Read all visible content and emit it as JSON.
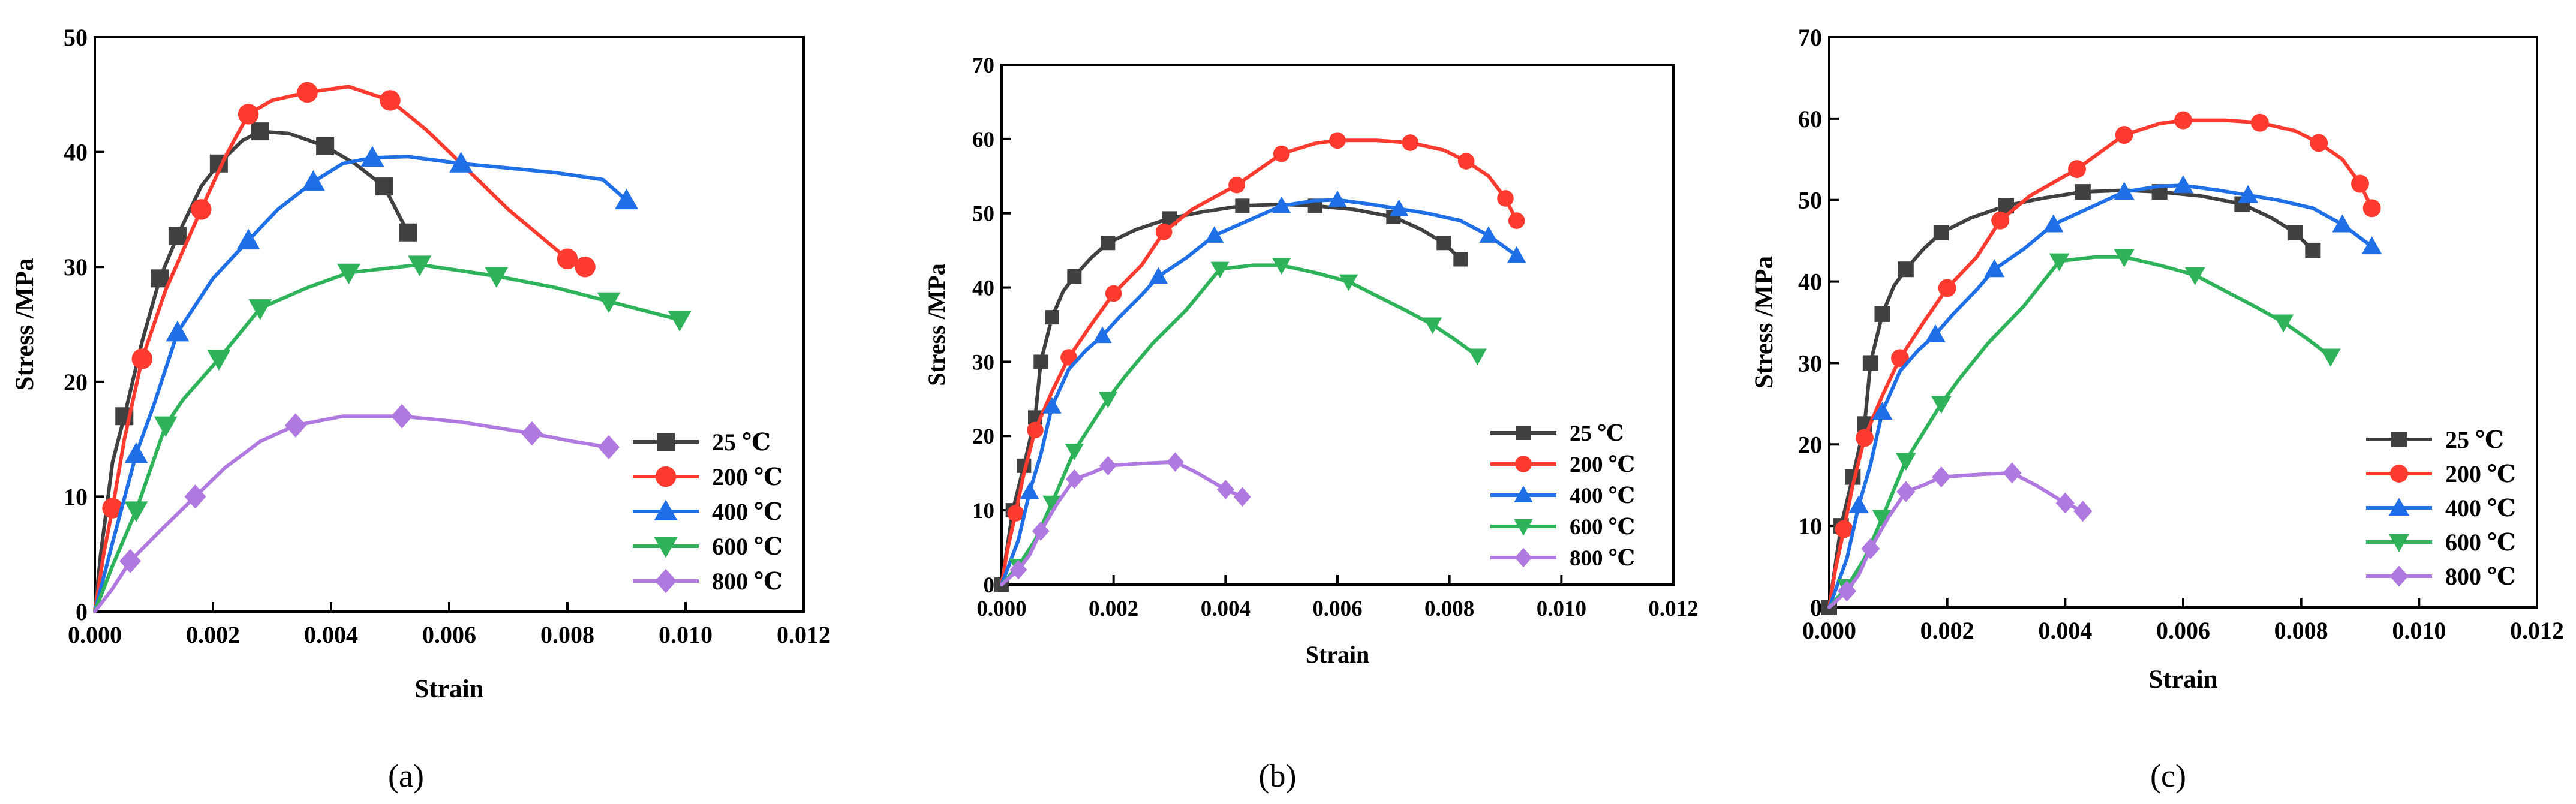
{
  "figure": {
    "panels": [
      {
        "label": "(a)"
      },
      {
        "label": "(b)"
      },
      {
        "label": "(c)"
      }
    ]
  },
  "chart_data": [
    {
      "type": "line",
      "panel_label": "(a)",
      "title": "",
      "xlabel": "Strain",
      "ylabel": "Stress /MPa",
      "xlim": [
        0,
        0.012
      ],
      "ylim": [
        0,
        50
      ],
      "xticks": [
        0.0,
        0.002,
        0.004,
        0.006,
        0.008,
        0.01,
        0.012
      ],
      "xtick_labels": [
        "0.000",
        "0.002",
        "0.004",
        "0.006",
        "0.008",
        "0.010",
        "0.012"
      ],
      "yticks": [
        0,
        10,
        20,
        30,
        40,
        50
      ],
      "ytick_labels": [
        "0",
        "10",
        "20",
        "30",
        "40",
        "50"
      ],
      "grid": false,
      "legend_position": "bottom-right",
      "series": [
        {
          "name": "25 ℃",
          "color": "#404040",
          "marker": "square",
          "x": [
            0,
            0.0001,
            0.0003,
            0.0005,
            0.0008,
            0.0011,
            0.0014,
            0.0018,
            0.0021,
            0.0025,
            0.0028,
            0.0033,
            0.0039,
            0.0044,
            0.0049,
            0.0053
          ],
          "y": [
            0,
            5,
            13,
            17,
            23.5,
            29,
            32.7,
            37,
            39,
            41,
            41.8,
            41.6,
            40.5,
            39,
            37,
            33
          ],
          "markers": [
            3,
            5,
            6,
            8,
            10,
            12,
            14,
            15
          ]
        },
        {
          "name": "200 ℃",
          "color": "#ff3b30",
          "marker": "circle",
          "x": [
            0,
            0.00015,
            0.0003,
            0.0005,
            0.0008,
            0.0012,
            0.0018,
            0.0022,
            0.0026,
            0.003,
            0.0036,
            0.0043,
            0.005,
            0.0056,
            0.0063,
            0.007,
            0.008,
            0.0083
          ],
          "y": [
            0,
            5,
            9,
            15,
            22,
            28,
            35,
            39.5,
            43.3,
            44.5,
            45.2,
            45.7,
            44.5,
            42,
            38.5,
            35,
            30.7,
            30
          ],
          "markers": [
            2,
            4,
            6,
            8,
            10,
            12,
            16,
            17
          ]
        },
        {
          "name": "400 ℃",
          "color": "#1f6fe6",
          "marker": "triangle-up",
          "x": [
            0,
            0.0003,
            0.0007,
            0.001,
            0.0014,
            0.002,
            0.0026,
            0.0031,
            0.0037,
            0.0042,
            0.0047,
            0.0053,
            0.0062,
            0.007,
            0.0078,
            0.0086,
            0.009
          ],
          "y": [
            0,
            6,
            13.7,
            18,
            24.3,
            29,
            32.3,
            35,
            37.4,
            39,
            39.5,
            39.6,
            39,
            38.6,
            38.2,
            37.6,
            35.8
          ],
          "markers": [
            2,
            4,
            6,
            8,
            10,
            12,
            16
          ]
        },
        {
          "name": "600 ℃",
          "color": "#2fb35a",
          "marker": "triangle-down",
          "x": [
            0,
            0.0003,
            0.0007,
            0.0012,
            0.0015,
            0.0021,
            0.0028,
            0.0036,
            0.0043,
            0.0055,
            0.0068,
            0.0078,
            0.0087,
            0.0093,
            0.0099
          ],
          "y": [
            0,
            4,
            8.8,
            16.2,
            18.5,
            22,
            26.4,
            28.2,
            29.5,
            30.2,
            29.2,
            28.2,
            27,
            26.2,
            25.4
          ],
          "markers": [
            2,
            3,
            5,
            6,
            8,
            9,
            10,
            12,
            14
          ]
        },
        {
          "name": "800 ℃",
          "color": "#b079e0",
          "marker": "diamond",
          "x": [
            0,
            0.0003,
            0.0006,
            0.0011,
            0.0017,
            0.0022,
            0.0028,
            0.0034,
            0.0042,
            0.0052,
            0.0062,
            0.0074,
            0.0081,
            0.0087
          ],
          "y": [
            0,
            2,
            4.4,
            7,
            10,
            12.5,
            14.8,
            16.2,
            17,
            17,
            16.5,
            15.5,
            14.8,
            14.3
          ],
          "markers": [
            2,
            4,
            7,
            9,
            11,
            13
          ]
        }
      ]
    },
    {
      "type": "line",
      "panel_label": "(b)",
      "title": "",
      "xlabel": "Strain",
      "ylabel": "Stress /MPa",
      "xlim": [
        0,
        0.012
      ],
      "ylim": [
        0,
        70
      ],
      "xticks": [
        0.0,
        0.002,
        0.004,
        0.006,
        0.008,
        0.01,
        0.012
      ],
      "xtick_labels": [
        "0.000",
        "0.002",
        "0.004",
        "0.006",
        "0.008",
        "0.010",
        "0.012"
      ],
      "yticks": [
        0,
        10,
        20,
        30,
        40,
        50,
        60,
        70
      ],
      "ytick_labels": [
        "0",
        "10",
        "20",
        "30",
        "40",
        "50",
        "60",
        "70"
      ],
      "grid": false,
      "legend_position": "bottom-right",
      "series": [
        {
          "name": "25 ℃",
          "color": "#404040",
          "marker": "square",
          "x": [
            0,
            0.0001,
            0.0002,
            0.0004,
            0.0006,
            0.0007,
            0.0009,
            0.0011,
            0.0013,
            0.0016,
            0.0019,
            0.0024,
            0.003,
            0.0036,
            0.0043,
            0.005,
            0.0056,
            0.0063,
            0.007,
            0.0075,
            0.0079,
            0.0082
          ],
          "y": [
            0,
            5,
            10,
            16,
            22.5,
            30,
            36,
            39.5,
            41.5,
            44,
            46,
            47.8,
            49.3,
            50.2,
            51,
            51.2,
            51,
            50.5,
            49.5,
            47.8,
            46,
            43.8
          ],
          "markers": [
            0,
            2,
            3,
            4,
            5,
            6,
            8,
            10,
            12,
            14,
            16,
            18,
            20,
            21
          ]
        },
        {
          "name": "200 ℃",
          "color": "#ff3b30",
          "marker": "circle",
          "x": [
            0,
            0.0001,
            0.00025,
            0.0004,
            0.0006,
            0.0009,
            0.0012,
            0.0016,
            0.002,
            0.0025,
            0.0029,
            0.0034,
            0.0042,
            0.005,
            0.0056,
            0.006,
            0.0067,
            0.0073,
            0.0079,
            0.0083,
            0.0087,
            0.009,
            0.0091,
            0.0092
          ],
          "y": [
            0,
            4.5,
            9.6,
            15,
            20.8,
            26,
            30.6,
            35,
            39.2,
            43,
            47.5,
            50.5,
            53.8,
            58,
            59.4,
            59.8,
            59.8,
            59.5,
            58.5,
            57,
            55,
            52,
            50.5,
            49
          ],
          "markers": [
            2,
            4,
            6,
            8,
            10,
            12,
            13,
            15,
            17,
            19,
            21,
            23
          ]
        },
        {
          "name": "400 ℃",
          "color": "#1f6fe6",
          "marker": "triangle-up",
          "x": [
            0,
            0.0003,
            0.0005,
            0.0007,
            0.0009,
            0.0012,
            0.0015,
            0.0018,
            0.0021,
            0.0025,
            0.0028,
            0.0033,
            0.0038,
            0.0044,
            0.005,
            0.0056,
            0.006,
            0.0066,
            0.0071,
            0.0076,
            0.0082,
            0.0087,
            0.0092
          ],
          "y": [
            0,
            6,
            12.5,
            17.5,
            24,
            29,
            31.5,
            33.5,
            36,
            39,
            41.5,
            44,
            47,
            49,
            51,
            51.7,
            51.8,
            51.2,
            50.6,
            50,
            49,
            47,
            44.3
          ],
          "markers": [
            2,
            4,
            7,
            10,
            12,
            14,
            16,
            18,
            21,
            22
          ]
        },
        {
          "name": "600 ℃",
          "color": "#2fb35a",
          "marker": "triangle-down",
          "x": [
            0,
            0.0003,
            0.0006,
            0.0009,
            0.0013,
            0.0019,
            0.0022,
            0.0027,
            0.0033,
            0.0039,
            0.0045,
            0.005,
            0.0056,
            0.0062,
            0.0068,
            0.0072,
            0.0077,
            0.0081,
            0.0085
          ],
          "y": [
            0,
            2.5,
            6,
            11,
            18,
            25,
            28,
            32.5,
            37,
            42.5,
            43,
            43,
            42,
            40.8,
            38.5,
            37,
            35,
            33,
            30.8
          ],
          "markers": [
            1,
            3,
            4,
            5,
            9,
            11,
            13,
            16,
            18
          ]
        },
        {
          "name": "800 ℃",
          "color": "#b079e0",
          "marker": "diamond",
          "x": [
            0,
            0.0003,
            0.0005,
            0.0007,
            0.001,
            0.0013,
            0.0016,
            0.0019,
            0.0025,
            0.0031,
            0.0035,
            0.004,
            0.0043
          ],
          "y": [
            0,
            2,
            4,
            7.2,
            11,
            14.2,
            15,
            16,
            16.3,
            16.5,
            15,
            12.8,
            11.8
          ],
          "markers": [
            1,
            3,
            5,
            7,
            9,
            11,
            12
          ]
        }
      ]
    },
    {
      "type": "line",
      "panel_label": "(c)",
      "title": "",
      "xlabel": "Strain",
      "ylabel": "Stress /MPa",
      "xlim": [
        0,
        0.012
      ],
      "ylim": [
        0,
        70
      ],
      "xticks": [
        0.0,
        0.002,
        0.004,
        0.006,
        0.008,
        0.01,
        0.012
      ],
      "xtick_labels": [
        "0.000",
        "0.002",
        "0.004",
        "0.006",
        "0.008",
        "0.010",
        "0.012"
      ],
      "yticks": [
        0,
        10,
        20,
        30,
        40,
        50,
        60,
        70
      ],
      "ytick_labels": [
        "0",
        "10",
        "20",
        "30",
        "40",
        "50",
        "60",
        "70"
      ],
      "grid": false,
      "legend_position": "bottom-right",
      "series": [
        {
          "name": "25 ℃",
          "color": "#404040",
          "marker": "square",
          "x": [
            0,
            0.0001,
            0.0002,
            0.0004,
            0.0006,
            0.0007,
            0.0009,
            0.0011,
            0.0013,
            0.0016,
            0.0019,
            0.0024,
            0.003,
            0.0036,
            0.0043,
            0.005,
            0.0056,
            0.0063,
            0.007,
            0.0075,
            0.0079,
            0.0082
          ],
          "y": [
            0,
            5,
            10,
            16,
            22.5,
            30,
            36,
            39.5,
            41.5,
            44,
            46,
            47.8,
            49.3,
            50.2,
            51,
            51.2,
            51,
            50.5,
            49.5,
            47.8,
            46,
            43.8
          ],
          "markers": [
            0,
            2,
            3,
            4,
            5,
            6,
            8,
            10,
            12,
            14,
            16,
            18,
            20,
            21
          ]
        },
        {
          "name": "200 ℃",
          "color": "#ff3b30",
          "marker": "circle",
          "x": [
            0,
            0.0001,
            0.00025,
            0.0004,
            0.0006,
            0.0009,
            0.0012,
            0.0016,
            0.002,
            0.0025,
            0.0029,
            0.0034,
            0.0042,
            0.005,
            0.0056,
            0.006,
            0.0067,
            0.0073,
            0.0079,
            0.0083,
            0.0087,
            0.009,
            0.0091,
            0.0092
          ],
          "y": [
            0,
            4.5,
            9.6,
            15,
            20.8,
            26,
            30.6,
            35,
            39.2,
            43,
            47.5,
            50.5,
            53.8,
            58,
            59.4,
            59.8,
            59.8,
            59.5,
            58.5,
            57,
            55,
            52,
            50.5,
            49
          ],
          "markers": [
            2,
            4,
            6,
            8,
            10,
            12,
            13,
            15,
            17,
            19,
            21,
            23
          ]
        },
        {
          "name": "400 ℃",
          "color": "#1f6fe6",
          "marker": "triangle-up",
          "x": [
            0,
            0.0003,
            0.0005,
            0.0007,
            0.0009,
            0.0012,
            0.0015,
            0.0018,
            0.0021,
            0.0025,
            0.0028,
            0.0033,
            0.0038,
            0.0044,
            0.005,
            0.0056,
            0.006,
            0.0066,
            0.0071,
            0.0076,
            0.0082,
            0.0087,
            0.0092
          ],
          "y": [
            0,
            6,
            12.5,
            17.5,
            24,
            29,
            31.5,
            33.5,
            36,
            39,
            41.5,
            44,
            47,
            49,
            51,
            51.7,
            51.8,
            51.2,
            50.6,
            50,
            49,
            47,
            44.3
          ],
          "markers": [
            2,
            4,
            7,
            10,
            12,
            14,
            16,
            18,
            21,
            22
          ]
        },
        {
          "name": "600 ℃",
          "color": "#2fb35a",
          "marker": "triangle-down",
          "x": [
            0,
            0.0003,
            0.0006,
            0.0009,
            0.0013,
            0.0019,
            0.0022,
            0.0027,
            0.0033,
            0.0039,
            0.0045,
            0.005,
            0.0056,
            0.0062,
            0.0068,
            0.0072,
            0.0077,
            0.0081,
            0.0085
          ],
          "y": [
            0,
            2.5,
            6,
            11,
            18,
            25,
            28,
            32.5,
            37,
            42.5,
            43,
            43,
            42,
            40.8,
            38.5,
            37,
            35,
            33,
            30.8
          ],
          "markers": [
            1,
            3,
            4,
            5,
            9,
            11,
            13,
            16,
            18
          ]
        },
        {
          "name": "800 ℃",
          "color": "#b079e0",
          "marker": "diamond",
          "x": [
            0,
            0.0003,
            0.0005,
            0.0007,
            0.001,
            0.0013,
            0.0016,
            0.0019,
            0.0025,
            0.0031,
            0.0035,
            0.004,
            0.0043
          ],
          "y": [
            0,
            2,
            4,
            7.2,
            11,
            14.2,
            15,
            16,
            16.3,
            16.5,
            15,
            12.8,
            11.8
          ],
          "markers": [
            1,
            3,
            5,
            7,
            9,
            11,
            12
          ]
        }
      ]
    }
  ]
}
